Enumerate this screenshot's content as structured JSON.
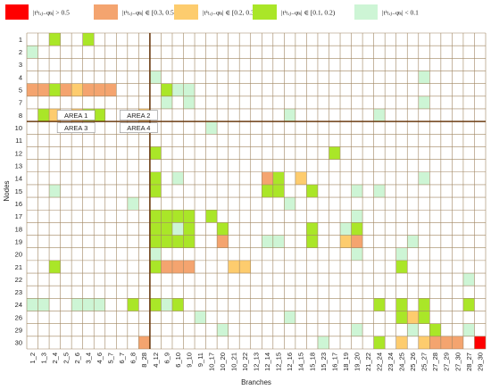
{
  "chart_data": {
    "type": "heatmap",
    "xlabel": "Branches",
    "ylabel": "Nodes",
    "grid": true,
    "legend_position": "top",
    "legend": [
      {
        "key": "gt05",
        "label": "|tᵏₗᵢⱼ₋φₖ| > 0.5",
        "color": "#ff0000"
      },
      {
        "key": "r03",
        "label": "|tᵏₗᵢⱼ₋φₖ| ∈ [0.3, 0.5)",
        "color": "#f4a46f"
      },
      {
        "key": "r02",
        "label": "|tᵏₗᵢⱼ₋φₖ| ∈ [0.2, 0.3)",
        "color": "#fdcc6e"
      },
      {
        "key": "r01",
        "label": "|tᵏₗᵢⱼ₋φₖ| ∈ [0.1, 0.2)",
        "color": "#aae628"
      },
      {
        "key": "lt01",
        "label": "|tᵏₗᵢⱼ₋φₖ| < 0.1",
        "color": "#cdf5d5"
      }
    ],
    "branches": [
      "1_2",
      "1_3",
      "2_4",
      "2_5",
      "2_6",
      "3_4",
      "4_6",
      "5_7",
      "6_7",
      "6_8",
      "8_28",
      "4_12",
      "6_9",
      "6_10",
      "9_10",
      "9_11",
      "10_17",
      "10_20",
      "10_21",
      "10_22",
      "12_13",
      "12_14",
      "12_15",
      "12_16",
      "14_15",
      "15_18",
      "15_23",
      "16_17",
      "18_19",
      "19_20",
      "21_22",
      "22_24",
      "23_24",
      "24_25",
      "25_26",
      "25_27",
      "27_28",
      "27_29",
      "27_30",
      "28_27",
      "29_30"
    ],
    "nodes": [
      "1",
      "2",
      "3",
      "4",
      "5",
      "7",
      "8",
      "10",
      "11",
      "12",
      "13",
      "14",
      "15",
      "16",
      "17",
      "18",
      "19",
      "20",
      "21",
      "22",
      "23",
      "24",
      "26",
      "29",
      "30"
    ],
    "areas": [
      {
        "label": "AREA 1",
        "col": 4.4,
        "row": 6.0
      },
      {
        "label": "AREA 2",
        "col": 10.0,
        "row": 6.0
      },
      {
        "label": "AREA 3",
        "col": 4.4,
        "row": 7.0
      },
      {
        "label": "AREA 4",
        "col": 10.0,
        "row": 7.0
      }
    ],
    "cells": [
      [
        "1_2",
        "2",
        "lt01"
      ],
      [
        "2_4",
        "1",
        "r01"
      ],
      [
        "3_4",
        "1",
        "r01"
      ],
      [
        "1_2",
        "5",
        "r03"
      ],
      [
        "1_3",
        "5",
        "r03"
      ],
      [
        "2_4",
        "5",
        "r01"
      ],
      [
        "2_5",
        "5",
        "r03"
      ],
      [
        "2_6",
        "5",
        "r02"
      ],
      [
        "3_4",
        "5",
        "r03"
      ],
      [
        "4_6",
        "5",
        "r03"
      ],
      [
        "5_7",
        "5",
        "r03"
      ],
      [
        "1_3",
        "8",
        "r01"
      ],
      [
        "2_4",
        "8",
        "r02"
      ],
      [
        "2_6",
        "8",
        "r02"
      ],
      [
        "3_4",
        "8",
        "r01"
      ],
      [
        "4_6",
        "8",
        "r01"
      ],
      [
        "8_28",
        "8",
        "r02"
      ],
      [
        "4_12",
        "4",
        "lt01"
      ],
      [
        "6_9",
        "5",
        "r01"
      ],
      [
        "6_10",
        "5",
        "lt01"
      ],
      [
        "9_10",
        "5",
        "lt01"
      ],
      [
        "6_9",
        "7",
        "lt01"
      ],
      [
        "9_10",
        "7",
        "lt01"
      ],
      [
        "12_16",
        "8",
        "lt01"
      ],
      [
        "22_24",
        "8",
        "lt01"
      ],
      [
        "25_27",
        "4",
        "lt01"
      ],
      [
        "25_27",
        "7",
        "lt01"
      ],
      [
        "10_17",
        "10",
        "lt01"
      ],
      [
        "4_12",
        "12",
        "r01"
      ],
      [
        "16_17",
        "12",
        "r01"
      ],
      [
        "4_12",
        "14",
        "r01"
      ],
      [
        "6_10",
        "14",
        "lt01"
      ],
      [
        "12_14",
        "14",
        "r03"
      ],
      [
        "12_15",
        "14",
        "r01"
      ],
      [
        "14_15",
        "14",
        "r02"
      ],
      [
        "25_27",
        "14",
        "lt01"
      ],
      [
        "2_4",
        "15",
        "lt01"
      ],
      [
        "4_12",
        "15",
        "r01"
      ],
      [
        "12_14",
        "15",
        "r01"
      ],
      [
        "12_15",
        "15",
        "r01"
      ],
      [
        "15_18",
        "15",
        "r01"
      ],
      [
        "19_20",
        "15",
        "lt01"
      ],
      [
        "22_24",
        "15",
        "lt01"
      ],
      [
        "6_8",
        "16",
        "lt01"
      ],
      [
        "12_16",
        "16",
        "lt01"
      ],
      [
        "4_12",
        "17",
        "r01"
      ],
      [
        "6_9",
        "17",
        "r01"
      ],
      [
        "6_10",
        "17",
        "r01"
      ],
      [
        "9_10",
        "17",
        "r01"
      ],
      [
        "10_17",
        "17",
        "r01"
      ],
      [
        "19_20",
        "17",
        "lt01"
      ],
      [
        "4_12",
        "18",
        "r01"
      ],
      [
        "6_9",
        "18",
        "r01"
      ],
      [
        "6_10",
        "18",
        "lt01"
      ],
      [
        "9_10",
        "18",
        "r01"
      ],
      [
        "10_20",
        "18",
        "r01"
      ],
      [
        "15_18",
        "18",
        "r01"
      ],
      [
        "18_19",
        "18",
        "lt01"
      ],
      [
        "19_20",
        "18",
        "r01"
      ],
      [
        "4_12",
        "19",
        "r01"
      ],
      [
        "6_9",
        "19",
        "r01"
      ],
      [
        "6_10",
        "19",
        "r01"
      ],
      [
        "9_10",
        "19",
        "r01"
      ],
      [
        "10_20",
        "19",
        "r03"
      ],
      [
        "12_14",
        "19",
        "lt01"
      ],
      [
        "12_15",
        "19",
        "lt01"
      ],
      [
        "15_18",
        "19",
        "r01"
      ],
      [
        "18_19",
        "19",
        "r02"
      ],
      [
        "19_20",
        "19",
        "r03"
      ],
      [
        "25_26",
        "19",
        "lt01"
      ],
      [
        "4_12",
        "20",
        "lt01"
      ],
      [
        "19_20",
        "20",
        "lt01"
      ],
      [
        "24_25",
        "20",
        "lt01"
      ],
      [
        "2_4",
        "21",
        "r01"
      ],
      [
        "4_12",
        "21",
        "r01"
      ],
      [
        "6_9",
        "21",
        "r03"
      ],
      [
        "6_10",
        "21",
        "r03"
      ],
      [
        "9_10",
        "21",
        "r03"
      ],
      [
        "10_22",
        "21",
        "r02"
      ],
      [
        "10_21",
        "21",
        "r02"
      ],
      [
        "24_25",
        "21",
        "r01"
      ],
      [
        "28_27",
        "22",
        "lt01"
      ],
      [
        "1_2",
        "24",
        "lt01"
      ],
      [
        "1_3",
        "24",
        "lt01"
      ],
      [
        "2_6",
        "24",
        "lt01"
      ],
      [
        "3_4",
        "24",
        "lt01"
      ],
      [
        "4_6",
        "24",
        "lt01"
      ],
      [
        "6_8",
        "24",
        "r01"
      ],
      [
        "4_12",
        "24",
        "r01"
      ],
      [
        "6_9",
        "24",
        "lt01"
      ],
      [
        "6_10",
        "24",
        "r01"
      ],
      [
        "22_24",
        "24",
        "r01"
      ],
      [
        "24_25",
        "24",
        "r01"
      ],
      [
        "25_27",
        "24",
        "r01"
      ],
      [
        "28_27",
        "24",
        "r01"
      ],
      [
        "9_11",
        "26",
        "lt01"
      ],
      [
        "12_16",
        "26",
        "lt01"
      ],
      [
        "24_25",
        "26",
        "r01"
      ],
      [
        "25_26",
        "26",
        "r02"
      ],
      [
        "25_27",
        "26",
        "r01"
      ],
      [
        "10_20",
        "29",
        "lt01"
      ],
      [
        "19_20",
        "29",
        "lt01"
      ],
      [
        "25_26",
        "29",
        "lt01"
      ],
      [
        "27_28",
        "29",
        "r01"
      ],
      [
        "28_27",
        "29",
        "lt01"
      ],
      [
        "8_28",
        "30",
        "r03"
      ],
      [
        "15_23",
        "30",
        "lt01"
      ],
      [
        "22_24",
        "30",
        "r01"
      ],
      [
        "24_25",
        "30",
        "r02"
      ],
      [
        "25_27",
        "30",
        "r02"
      ],
      [
        "27_28",
        "30",
        "r03"
      ],
      [
        "27_29",
        "30",
        "r03"
      ],
      [
        "27_30",
        "30",
        "r03"
      ],
      [
        "29_30",
        "30",
        "gt05"
      ]
    ]
  }
}
